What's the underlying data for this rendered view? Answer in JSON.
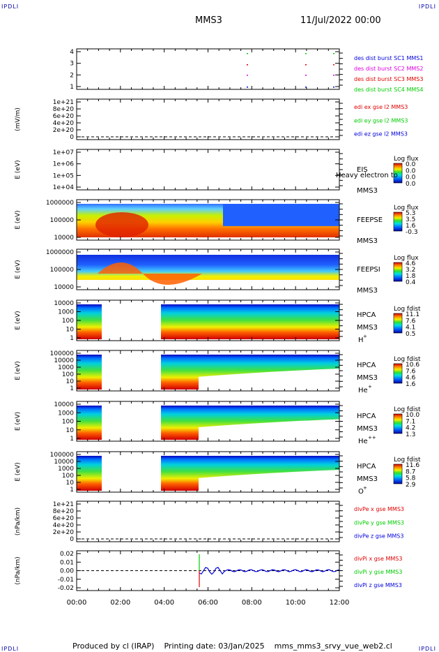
{
  "header": {
    "corner_mark": "IPDLI",
    "spacecraft": "MMS3",
    "date_time": "11/Jul/2022 00:00"
  },
  "footer": {
    "produced_by": "Produced by cl (IRAP)",
    "printing_date": "Printing date: 03/Jan/2025",
    "filename": "mms_mms3_srvy_vue_web2.cl"
  },
  "colors": {
    "red": "#e00000",
    "magenta": "#e000e0",
    "green": "#00cc00",
    "blue": "#0000dd",
    "spectrogram_fill": "#ffffff"
  },
  "chart_data": [
    {
      "type": "scatter",
      "panel": "burst",
      "yticks": [
        "4",
        "3",
        "2",
        "1"
      ],
      "series": [
        {
          "name": "des dist burst SC1 MMS1",
          "color": "#0000dd"
        },
        {
          "name": "des dist burst SC2 MMS2",
          "color": "#e000e0"
        },
        {
          "name": "des dist burst SC3 MMS3",
          "color": "#e00000"
        },
        {
          "name": "des dist burst SC4 MMS4",
          "color": "#00cc00"
        }
      ]
    },
    {
      "type": "line",
      "panel": "edi",
      "ylabel": "(mV/m)",
      "yticks": [
        "1e+21",
        "8e+20",
        "6e+20",
        "4e+20",
        "2e+20",
        "0"
      ],
      "series": [
        {
          "name": "edi ex gse l2 MMS3",
          "color": "#e00000"
        },
        {
          "name": "edi ey gse l2 MMS3",
          "color": "#00cc00"
        },
        {
          "name": "edi ez gse l2 MMS3",
          "color": "#0000dd"
        }
      ]
    },
    {
      "type": "heatmap",
      "panel": "eis",
      "ylabel": "E (eV)",
      "yticks": [
        "1e+07",
        "1e+06",
        "1e+05",
        "1e+04"
      ],
      "instrument": "EIS",
      "overlay": "Heavy electron to",
      "sc": "MMS3",
      "cbar_title": "Log flux",
      "cbar_ticks": [
        "0.0",
        "0.0",
        "0.0",
        "0.0"
      ]
    },
    {
      "type": "heatmap",
      "panel": "feepse",
      "ylabel": "E (eV)",
      "yticks": [
        "1000000",
        "100000",
        "10000"
      ],
      "instrument": "FEEPSE",
      "sc": "MMS3",
      "cbar_title": "Log flux",
      "cbar_ticks": [
        "5.3",
        "3.5",
        "1.6",
        "-0.3"
      ]
    },
    {
      "type": "heatmap",
      "panel": "feepsi",
      "ylabel": "E (eV)",
      "yticks": [
        "1000000",
        "100000",
        "10000"
      ],
      "instrument": "FEEPSI",
      "sc": "MMS3",
      "cbar_title": "Log flux",
      "cbar_ticks": [
        "4.6",
        "3.2",
        "1.8",
        "0.4"
      ]
    },
    {
      "type": "heatmap",
      "panel": "hpca_h",
      "ylabel": "E (eV)",
      "yticks": [
        "10000",
        "1000",
        "100",
        "10",
        "1"
      ],
      "instrument": "HPCA",
      "sc": "MMS3",
      "species": "H",
      "charge": "+",
      "cbar_title": "Log fdist",
      "cbar_ticks": [
        "11.1",
        "7.6",
        "4.1",
        "0.5"
      ]
    },
    {
      "type": "heatmap",
      "panel": "hpca_he",
      "ylabel": "E (eV)",
      "yticks": [
        "100000",
        "10000",
        "1000",
        "100",
        "10",
        "1"
      ],
      "instrument": "HPCA",
      "sc": "MMS3",
      "species": "He",
      "charge": "+",
      "cbar_title": "Log fdist",
      "cbar_ticks": [
        "10.6",
        "7.6",
        "4.6",
        "1.6"
      ]
    },
    {
      "type": "heatmap",
      "panel": "hpca_hepp",
      "ylabel": "E (eV)",
      "yticks": [
        "10000",
        "1000",
        "100",
        "10",
        "1"
      ],
      "instrument": "HPCA",
      "sc": "MMS3",
      "species": "He",
      "charge": "++",
      "cbar_title": "Log fdist",
      "cbar_ticks": [
        "10.0",
        "7.1",
        "4.2",
        "1.3"
      ]
    },
    {
      "type": "heatmap",
      "panel": "hpca_o",
      "ylabel": "E (eV)",
      "yticks": [
        "100000",
        "10000",
        "1000",
        "100",
        "10",
        "1"
      ],
      "instrument": "HPCA",
      "sc": "MMS3",
      "species": "O",
      "charge": "+",
      "cbar_title": "Log fdist",
      "cbar_ticks": [
        "11.6",
        "8.7",
        "5.8",
        "2.9"
      ]
    },
    {
      "type": "line",
      "panel": "divpe",
      "ylabel": "(nPa/km)",
      "yticks": [
        "1e+21",
        "8e+20",
        "6e+20",
        "4e+20",
        "2e+20",
        "0"
      ],
      "series": [
        {
          "name": "divPe x gse MMS3",
          "color": "#e00000"
        },
        {
          "name": "divPe y gse MMS3",
          "color": "#00cc00"
        },
        {
          "name": "divPe z gse MMS3",
          "color": "#0000dd"
        }
      ]
    },
    {
      "type": "line",
      "panel": "divpi",
      "ylabel": "(nPa/km)",
      "yticks": [
        "0.02",
        "0.01",
        "0.00",
        "-0.01",
        "-0.02"
      ],
      "series": [
        {
          "name": "divPi x gse MMS3",
          "color": "#e00000"
        },
        {
          "name": "divPi y gse MMS3",
          "color": "#00cc00"
        },
        {
          "name": "divPi z gse MMS3",
          "color": "#0000dd"
        }
      ]
    }
  ],
  "x_axis": {
    "ticks": [
      "00:00",
      "02:00",
      "04:00",
      "06:00",
      "08:00",
      "10:00",
      "12:00"
    ]
  }
}
